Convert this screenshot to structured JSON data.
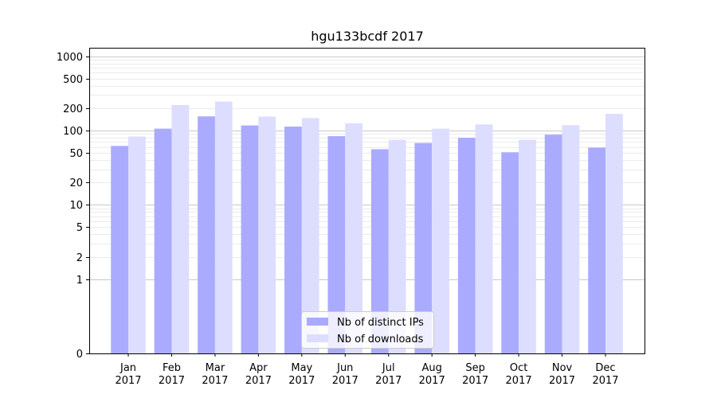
{
  "chart_data": {
    "type": "bar",
    "title": "hgu133bcdf 2017",
    "xlabel": "",
    "ylabel": "",
    "yscale": "symlog",
    "ylim": [
      0,
      1300
    ],
    "yticks": [
      0,
      1,
      2,
      5,
      10,
      20,
      50,
      100,
      200,
      500,
      1000
    ],
    "grid": true,
    "legend_position": "bottom-center",
    "categories": [
      [
        "Jan",
        "2017"
      ],
      [
        "Feb",
        "2017"
      ],
      [
        "Mar",
        "2017"
      ],
      [
        "Apr",
        "2017"
      ],
      [
        "May",
        "2017"
      ],
      [
        "Jun",
        "2017"
      ],
      [
        "Jul",
        "2017"
      ],
      [
        "Aug",
        "2017"
      ],
      [
        "Sep",
        "2017"
      ],
      [
        "Oct",
        "2017"
      ],
      [
        "Nov",
        "2017"
      ],
      [
        "Dec",
        "2017"
      ]
    ],
    "series": [
      {
        "name": "Nb of distinct IPs",
        "color": "#aaaaff",
        "values": [
          62,
          106,
          155,
          117,
          113,
          84,
          56,
          68,
          80,
          51,
          88,
          59
        ]
      },
      {
        "name": "Nb of downloads",
        "color": "#ddddff",
        "values": [
          83,
          220,
          245,
          154,
          147,
          125,
          75,
          106,
          121,
          75,
          118,
          168
        ]
      }
    ]
  }
}
